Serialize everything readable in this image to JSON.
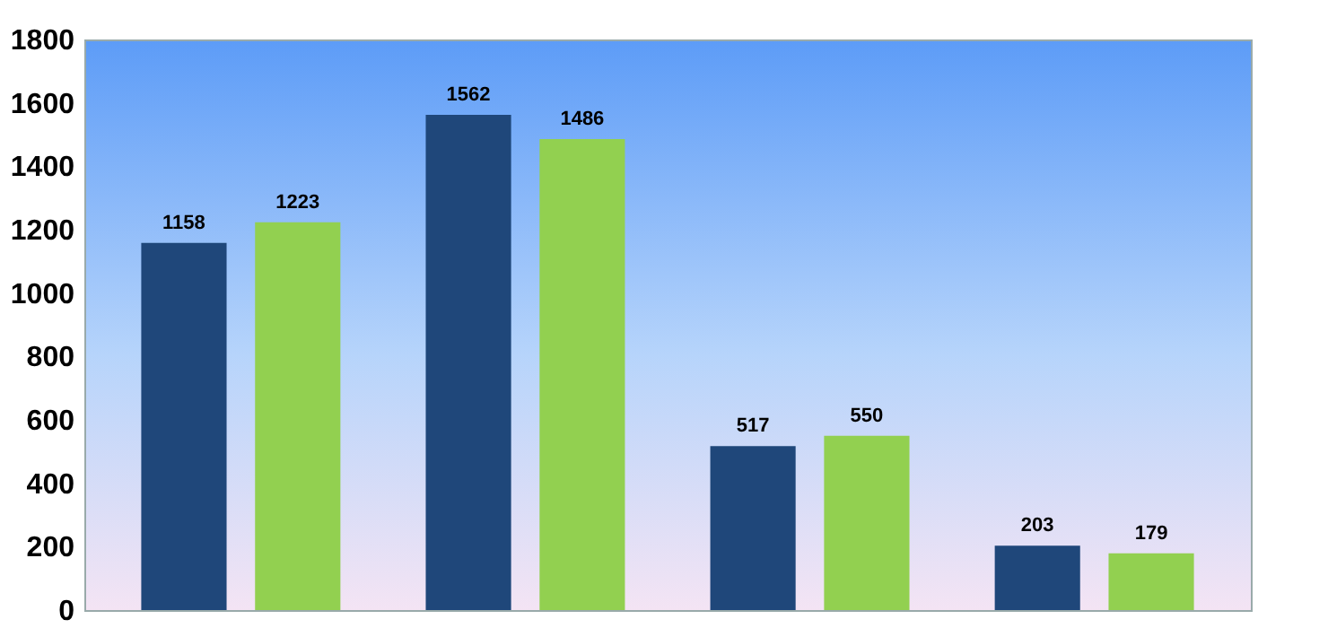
{
  "chart_data": {
    "type": "bar",
    "categories": [
      null,
      null,
      null,
      null
    ],
    "series": [
      {
        "color": "#1f477a",
        "values": [
          1158,
          1562,
          517,
          203
        ]
      },
      {
        "color": "#92d050",
        "values": [
          1223,
          1486,
          550,
          179
        ]
      }
    ],
    "ylim": [
      0,
      1800
    ],
    "yticks": [
      0,
      200,
      400,
      600,
      800,
      1000,
      1200,
      1400,
      1600,
      1800
    ],
    "grid": false,
    "legend": false,
    "data_labels": true,
    "tick_labels": "y"
  }
}
